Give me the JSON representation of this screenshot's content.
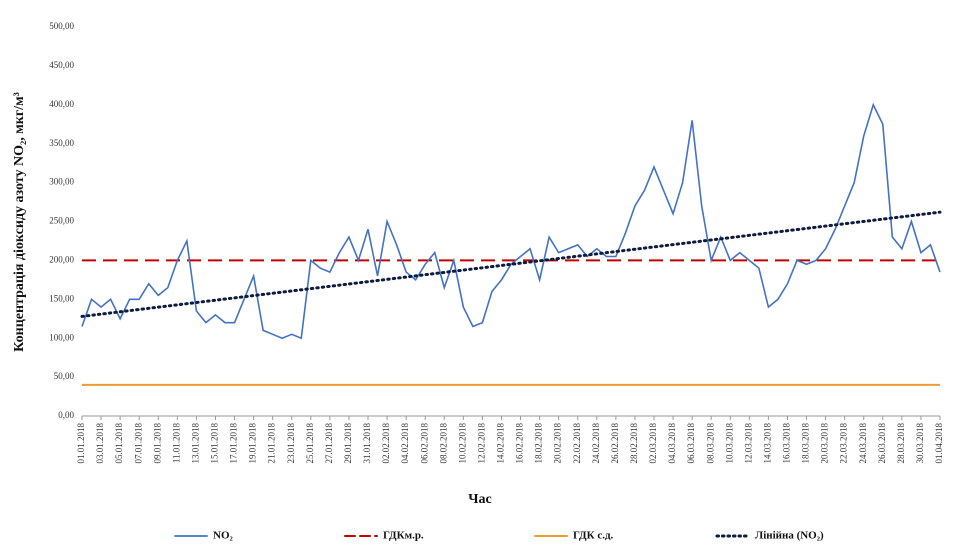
{
  "chart_data": {
    "type": "line",
    "y_label": "Концентрація діоксиду азоту NO₂, мкг/м³",
    "x_label": "Час",
    "categories": [
      "01.01.2018",
      null,
      "03.01.2018",
      null,
      "05.01.2018",
      null,
      "07.01.2018",
      null,
      "09.01.2018",
      null,
      "11.01.2018",
      null,
      "13.01.2018",
      null,
      "15.01.2018",
      null,
      "17.01.2018",
      null,
      "19.01.2018",
      null,
      "21.01.2018",
      null,
      "23.01.2018",
      null,
      "25.01.2018",
      null,
      "27.01.2018",
      null,
      "29.01.2018",
      null,
      "31.01.2018",
      null,
      "02.02.2018",
      null,
      "04.02.2018",
      null,
      "06.02.2018",
      null,
      "08.02.2018",
      null,
      "10.02.2018",
      null,
      "12.02.2018",
      null,
      "14.02.2018",
      null,
      "16.02.2018",
      null,
      "18.02.2018",
      null,
      "20.02.2018",
      null,
      "22.02.2018",
      null,
      "24.02.2018",
      null,
      "26.02.2018",
      null,
      "28.02.2018",
      null,
      "02.03.2018",
      null,
      "04.03.2018",
      null,
      "06.03.2018",
      null,
      "08.03.2018",
      null,
      "10.03.2018",
      null,
      "12.03.2018",
      null,
      "14.03.2018",
      null,
      "16.03.2018",
      null,
      "18.03.2018",
      null,
      "20.03.2018",
      null,
      "22.03.2018",
      null,
      "24.03.2018",
      null,
      "26.03.2018",
      null,
      "28.03.2018",
      null,
      "30.03.2018",
      null,
      "01.04.2018"
    ],
    "series": [
      {
        "name": "NO₂",
        "color": "#4472c4",
        "values": [
          115,
          150,
          140,
          150,
          125,
          150,
          150,
          170,
          155,
          165,
          200,
          225,
          135,
          120,
          130,
          120,
          120,
          150,
          180,
          110,
          105,
          100,
          105,
          100,
          200,
          190,
          185,
          210,
          230,
          200,
          240,
          180,
          250,
          220,
          185,
          175,
          195,
          210,
          165,
          200,
          140,
          115,
          120,
          160,
          175,
          195,
          205,
          215,
          175,
          230,
          210,
          215,
          220,
          205,
          215,
          205,
          205,
          235,
          270,
          290,
          320,
          290,
          260,
          300,
          380,
          270,
          200,
          230,
          200,
          210,
          200,
          190,
          140,
          150,
          170,
          200,
          195,
          200,
          215,
          240,
          270,
          300,
          360,
          400,
          375,
          230,
          215,
          250,
          210,
          220,
          185
        ]
      }
    ],
    "reference_lines": [
      {
        "name": "ГДКм.р.",
        "value": 200,
        "color": "#c00000",
        "dash": "dashed"
      },
      {
        "name": "ГДК с.д.",
        "value": 40,
        "color": "#ed9b33",
        "dash": "solid"
      }
    ],
    "trend": {
      "name": "Лінійна (NO₂)",
      "color": "#0d1b3e",
      "values": [
        128,
        262
      ]
    },
    "ylim": [
      0,
      500
    ],
    "yticks": [
      {
        "value": 0,
        "label": "0,00"
      },
      {
        "value": 50,
        "label": "50,00"
      },
      {
        "value": 100,
        "label": "100,00"
      },
      {
        "value": 150,
        "label": "150,00"
      },
      {
        "value": 200,
        "label": "200,00"
      },
      {
        "value": 250,
        "label": "250,00"
      },
      {
        "value": 300,
        "label": "300,00"
      },
      {
        "value": 350,
        "label": "350,00"
      },
      {
        "value": 400,
        "label": "400,00"
      },
      {
        "value": 450,
        "label": "450,00"
      },
      {
        "value": 500,
        "label": "500,00"
      }
    ],
    "grid": false,
    "legend": "bottom"
  }
}
